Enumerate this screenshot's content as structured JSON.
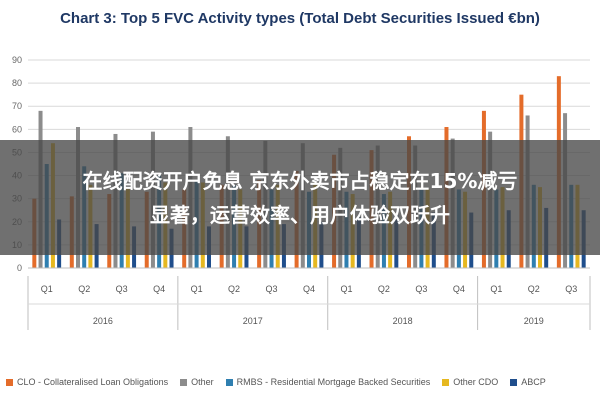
{
  "chart_data": {
    "type": "bar",
    "title": "Chart 3: Top 5 FVC Activity types (Total Debt Securities Issued €bn)",
    "categories": [
      "Q1",
      "Q2",
      "Q3",
      "Q4",
      "Q1",
      "Q2",
      "Q3",
      "Q4",
      "Q1",
      "Q2",
      "Q3",
      "Q4",
      "Q1",
      "Q2",
      "Q3"
    ],
    "year_groups": [
      {
        "label": "2016",
        "count": 4
      },
      {
        "label": "2017",
        "count": 4
      },
      {
        "label": "2018",
        "count": 4
      },
      {
        "label": "2019",
        "count": 3
      }
    ],
    "series": [
      {
        "name": "CLO - Collateralised Loan Obligations",
        "color": "#e46c2a",
        "values": [
          30,
          31,
          32,
          33,
          34,
          36,
          38,
          42,
          49,
          51,
          57,
          61,
          68,
          75,
          83
        ]
      },
      {
        "name": "Other",
        "color": "#8c8c8c",
        "values": [
          68,
          61,
          58,
          59,
          61,
          57,
          55,
          54,
          52,
          53,
          53,
          56,
          59,
          66,
          67
        ]
      },
      {
        "name": "RMBS - Residential Mortgage Backed Securities",
        "color": "#2f7fb0",
        "values": [
          45,
          44,
          41,
          40,
          38,
          36,
          34,
          33,
          33,
          32,
          34,
          34,
          34,
          36,
          36
        ]
      },
      {
        "name": "Other CDO",
        "color": "#e6b820",
        "values": [
          54,
          36,
          35,
          37,
          37,
          34,
          36,
          37,
          32,
          33,
          34,
          33,
          35,
          35,
          36
        ]
      },
      {
        "name": "ABCP",
        "color": "#1f4e8c",
        "values": [
          21,
          19,
          18,
          17,
          18,
          18,
          19,
          20,
          22,
          23,
          24,
          24,
          25,
          26,
          25
        ]
      }
    ],
    "yticks": [
      0,
      10,
      20,
      30,
      40,
      50,
      60,
      70,
      80,
      90
    ],
    "ylim": [
      0,
      90
    ],
    "grid": true,
    "legend_position": "bottom"
  },
  "overlay": {
    "line1": "在线配资开户免息 京东外卖市占稳定在15%减亏",
    "line2": "显著，运营效率、用户体验双跃升"
  }
}
